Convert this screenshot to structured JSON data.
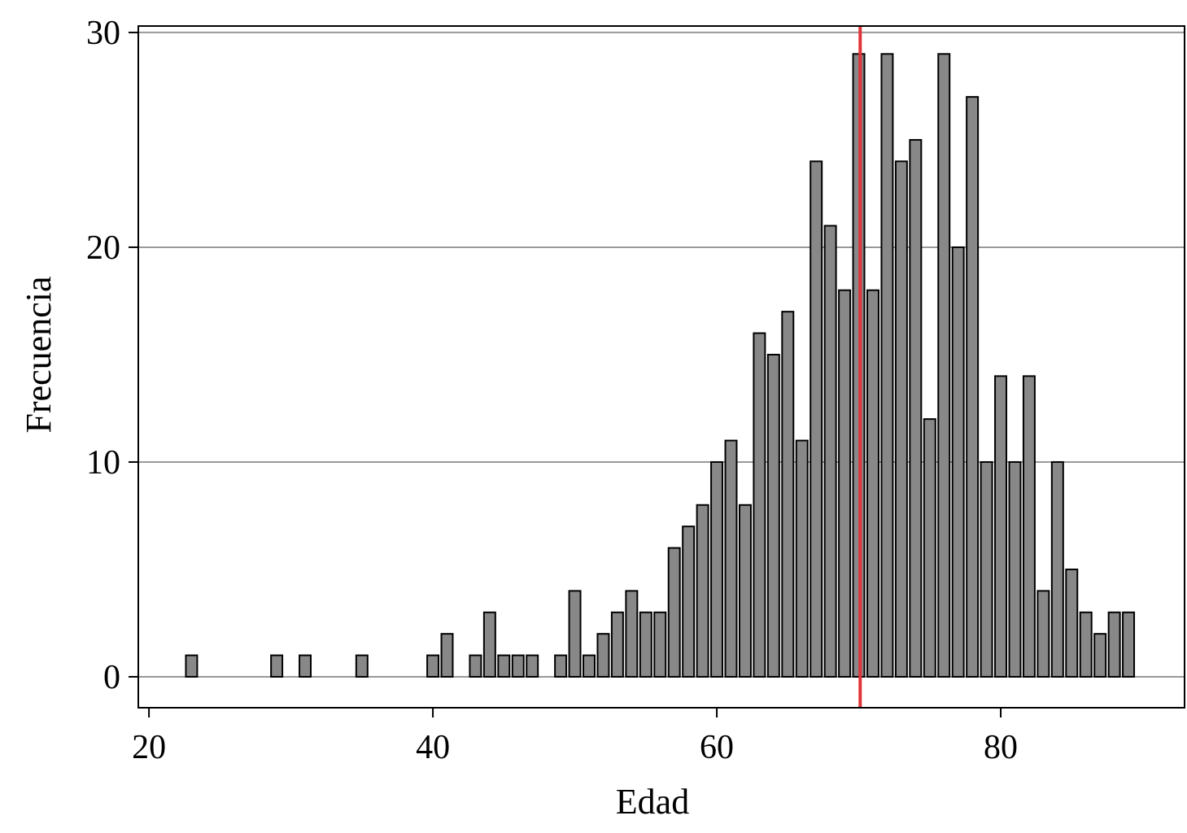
{
  "chart_data": {
    "type": "bar",
    "x_label": "Edad",
    "y_label": "Frecuencia",
    "x": [
      23,
      29,
      31,
      35,
      40,
      41,
      43,
      44,
      45,
      46,
      47,
      49,
      50,
      51,
      52,
      53,
      54,
      55,
      56,
      57,
      58,
      59,
      60,
      61,
      62,
      63,
      64,
      65,
      66,
      67,
      68,
      69,
      70,
      71,
      72,
      73,
      74,
      75,
      76,
      77,
      78,
      79,
      80,
      81,
      82,
      83,
      84,
      85,
      86,
      87,
      88,
      89
    ],
    "values": [
      1,
      1,
      1,
      1,
      1,
      2,
      1,
      3,
      1,
      1,
      1,
      1,
      4,
      1,
      2,
      3,
      4,
      3,
      3,
      6,
      7,
      8,
      10,
      11,
      8,
      16,
      15,
      17,
      11,
      24,
      21,
      18,
      29,
      18,
      29,
      24,
      25,
      12,
      29,
      20,
      27,
      10,
      14,
      10,
      14,
      4,
      10,
      5,
      3,
      2,
      3,
      3
    ],
    "color": "#888888",
    "edge_color": "#000000",
    "vline": 70.1,
    "vline_color": "#e0343a",
    "xlim": [
      19.25,
      92.95
    ],
    "ylim": [
      -1.44,
      30.3
    ],
    "xticks": [
      20,
      40,
      60,
      80
    ],
    "yticks": [
      0,
      10,
      20,
      30
    ],
    "grid": true
  }
}
